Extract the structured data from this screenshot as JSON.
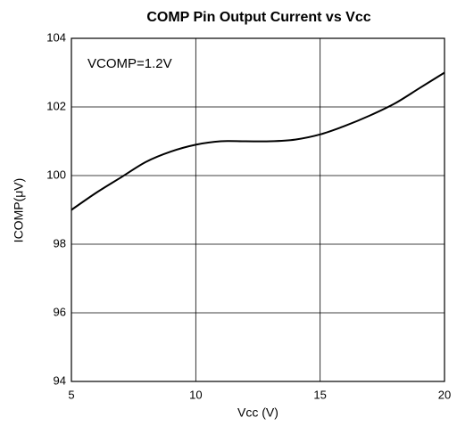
{
  "chart_data": {
    "type": "line",
    "title": "COMP Pin Output Current vs Vcc",
    "x_label": "Vcc (V)",
    "y_label": "ICOMP(μV)",
    "annotation": "VCOMP=1.2V",
    "x": [
      5,
      6,
      7,
      8,
      9,
      10,
      11,
      12,
      13,
      14,
      15,
      16,
      17,
      18,
      19,
      20
    ],
    "series": [
      {
        "name": "ICOMP",
        "color": "#000000",
        "values": [
          99.0,
          99.5,
          99.95,
          100.4,
          100.7,
          100.9,
          101.0,
          101.0,
          101.0,
          101.05,
          101.2,
          101.45,
          101.75,
          102.1,
          102.55,
          103.0
        ]
      }
    ],
    "xlim": [
      5,
      20
    ],
    "xticks": [
      5,
      10,
      15,
      20
    ],
    "ylim": [
      94,
      104
    ],
    "yticks": [
      94,
      96,
      98,
      100,
      102,
      104
    ],
    "grid": true
  }
}
